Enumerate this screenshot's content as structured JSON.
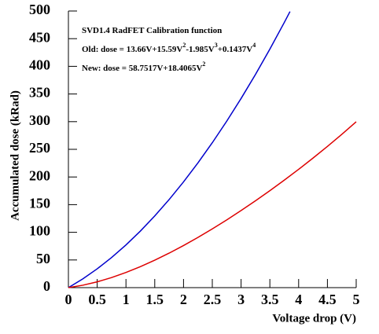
{
  "chart_data": {
    "type": "line",
    "x_label": "Voltage drop (V)",
    "y_label": "Accumulated dose (kRad)",
    "annotations": [
      [
        {
          "text": "SVD1.4 RadFET Calibration function"
        }
      ],
      [
        {
          "text": "Old: dose = 13.66V+15.59V"
        },
        {
          "sup": "2"
        },
        {
          "text": "-1.985V"
        },
        {
          "sup": "3"
        },
        {
          "text": "+0.1437V"
        },
        {
          "sup": "4"
        }
      ],
      [
        {
          "text": "New: dose = 58.7517V+18.4065V"
        },
        {
          "sup": "2"
        }
      ]
    ],
    "xlim": [
      0,
      5
    ],
    "ylim": [
      0,
      500
    ],
    "xticks": [
      0,
      0.5,
      1,
      1.5,
      2,
      2.5,
      3,
      3.5,
      4,
      4.5,
      5
    ],
    "yticks": [
      0,
      50,
      100,
      150,
      200,
      250,
      300,
      350,
      400,
      450,
      500
    ],
    "series": [
      {
        "color": "#0000cc",
        "x": [
          0,
          0.25,
          0.5,
          0.75,
          1,
          1.25,
          1.5,
          1.75,
          2,
          2.25,
          2.5,
          2.75,
          3,
          3.25,
          3.5,
          3.75,
          3.85
        ],
        "values": [
          0,
          15.84,
          33.98,
          54.42,
          77.16,
          102.2,
          129.54,
          159.19,
          191.13,
          225.37,
          261.92,
          300.77,
          341.91,
          385.36,
          431.11,
          479.16,
          499.03
        ]
      },
      {
        "color": "#dd0000",
        "x": [
          0,
          0.25,
          0.5,
          0.75,
          1,
          1.25,
          1.5,
          1.75,
          2,
          2.25,
          2.5,
          2.75,
          3,
          3.25,
          3.5,
          3.75,
          4,
          4.25,
          4.5,
          4.75,
          5
        ],
        "values": [
          0,
          4.36,
          10.49,
          18.22,
          27.41,
          37.91,
          49.6,
          62.35,
          76.1,
          90.73,
          106.18,
          122.4,
          139.34,
          156.96,
          175.25,
          194.19,
          213.83,
          234.16,
          255.21,
          277.05,
          299.74
        ]
      }
    ]
  }
}
